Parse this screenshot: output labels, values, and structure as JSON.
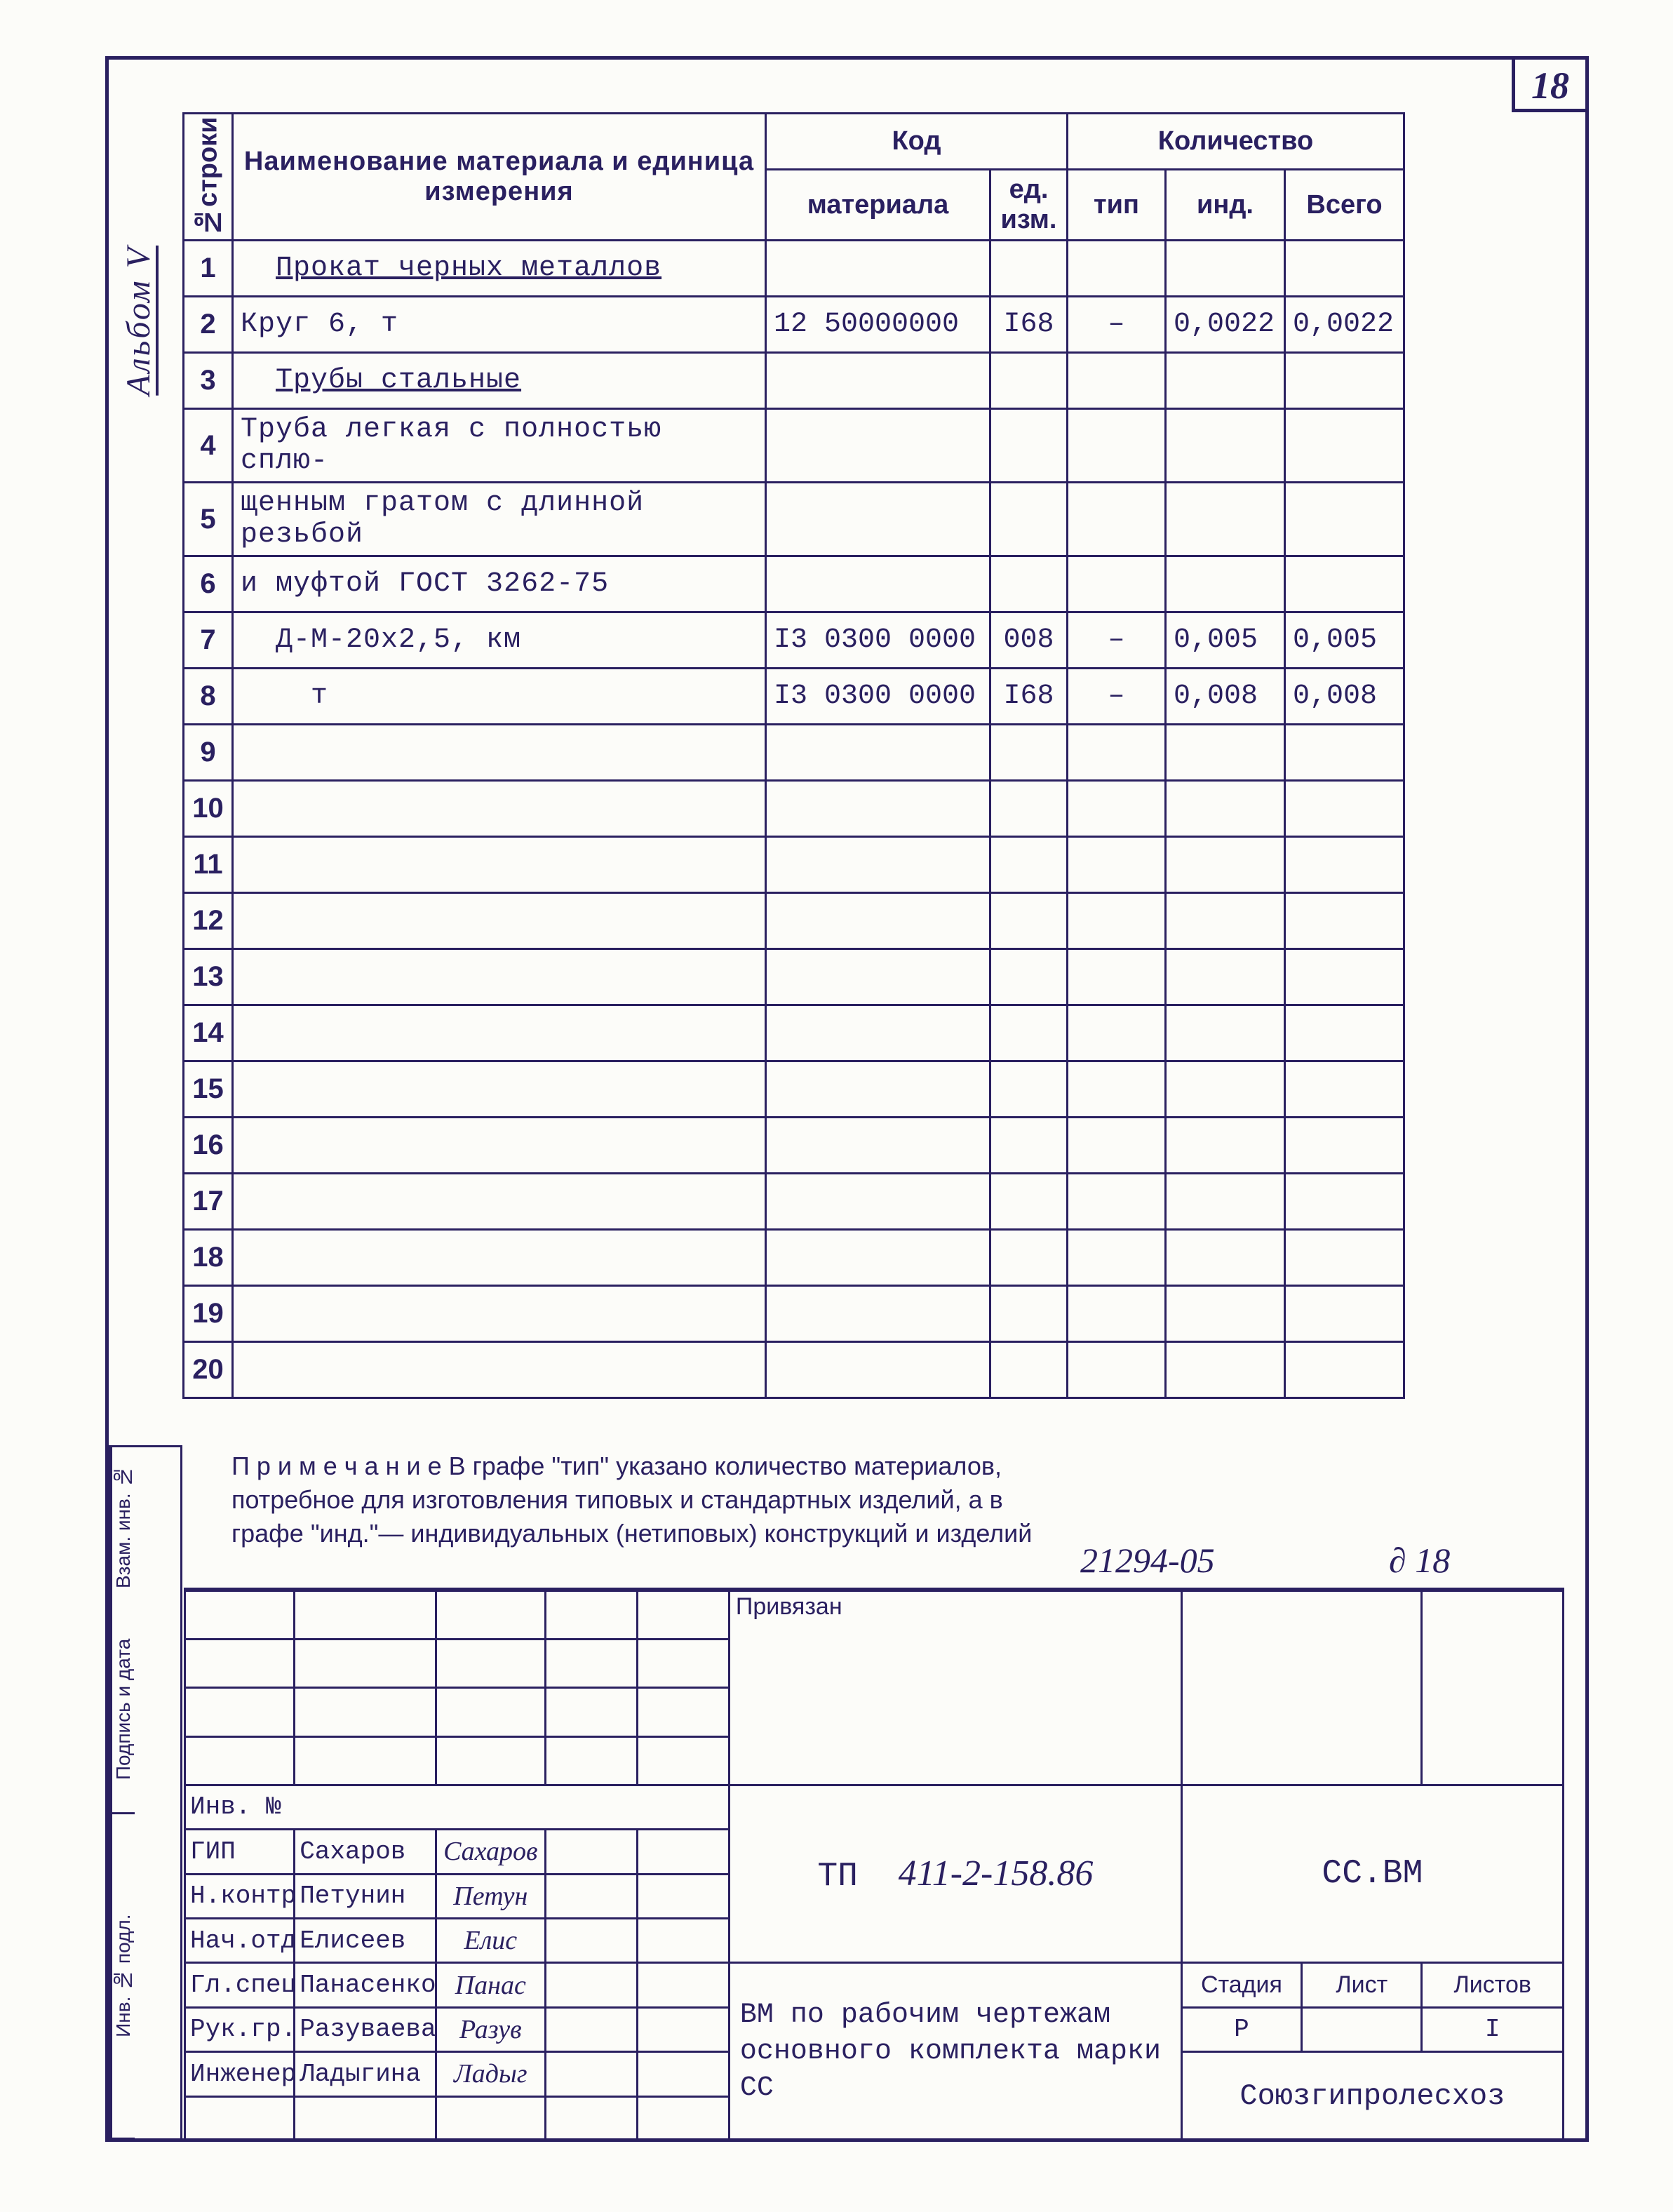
{
  "page_number": "18",
  "album_label": "Альбом V",
  "header": {
    "row_no": "№строки",
    "name": "Наименование материала и единица измерения",
    "code": "Код",
    "code_mat": "материала",
    "code_ed": "ед. изм.",
    "qty": "Количество",
    "tip": "тип",
    "ind": "инд.",
    "vsego": "Всего"
  },
  "rows": [
    {
      "n": "1",
      "name": "Прокат черных металлов",
      "name_cls": "underline indent",
      "mat": "",
      "ed": "",
      "tip": "",
      "ind": "",
      "vse": ""
    },
    {
      "n": "2",
      "name": "Круг 6, т",
      "mat": "12  50000000",
      "ed": "I68",
      "tip": "–",
      "ind": "0,0022",
      "vse": "0,0022"
    },
    {
      "n": "3",
      "name": "Трубы стальные",
      "name_cls": "underline indent",
      "mat": "",
      "ed": "",
      "tip": "",
      "ind": "",
      "vse": ""
    },
    {
      "n": "4",
      "name": "Труба легкая с полностью сплю-",
      "mat": "",
      "ed": "",
      "tip": "",
      "ind": "",
      "vse": ""
    },
    {
      "n": "5",
      "name": "щенным гратом с длинной резьбой",
      "mat": "",
      "ed": "",
      "tip": "",
      "ind": "",
      "vse": ""
    },
    {
      "n": "6",
      "name": "и муфтой ГОСТ 3262-75",
      "mat": "",
      "ed": "",
      "tip": "",
      "ind": "",
      "vse": ""
    },
    {
      "n": "7",
      "name": "Д-М-20х2,5, км",
      "name_cls": "indent",
      "mat": "I3 0300 0000",
      "ed": "008",
      "tip": "–",
      "ind": "0,005",
      "vse": "0,005"
    },
    {
      "n": "8",
      "name": "т",
      "name_cls": "indent2",
      "mat": "I3 0300 0000",
      "ed": "I68",
      "tip": "–",
      "ind": "0,008",
      "vse": "0,008"
    },
    {
      "n": "9",
      "name": "",
      "mat": "",
      "ed": "",
      "tip": "",
      "ind": "",
      "vse": ""
    },
    {
      "n": "10",
      "name": "",
      "mat": "",
      "ed": "",
      "tip": "",
      "ind": "",
      "vse": ""
    },
    {
      "n": "11",
      "name": "",
      "mat": "",
      "ed": "",
      "tip": "",
      "ind": "",
      "vse": ""
    },
    {
      "n": "12",
      "name": "",
      "mat": "",
      "ed": "",
      "tip": "",
      "ind": "",
      "vse": ""
    },
    {
      "n": "13",
      "name": "",
      "mat": "",
      "ed": "",
      "tip": "",
      "ind": "",
      "vse": ""
    },
    {
      "n": "14",
      "name": "",
      "mat": "",
      "ed": "",
      "tip": "",
      "ind": "",
      "vse": ""
    },
    {
      "n": "15",
      "name": "",
      "mat": "",
      "ed": "",
      "tip": "",
      "ind": "",
      "vse": ""
    },
    {
      "n": "16",
      "name": "",
      "mat": "",
      "ed": "",
      "tip": "",
      "ind": "",
      "vse": ""
    },
    {
      "n": "17",
      "name": "",
      "mat": "",
      "ed": "",
      "tip": "",
      "ind": "",
      "vse": ""
    },
    {
      "n": "18",
      "name": "",
      "mat": "",
      "ed": "",
      "tip": "",
      "ind": "",
      "vse": ""
    },
    {
      "n": "19",
      "name": "",
      "mat": "",
      "ed": "",
      "tip": "",
      "ind": "",
      "vse": ""
    },
    {
      "n": "20",
      "name": "",
      "mat": "",
      "ed": "",
      "tip": "",
      "ind": "",
      "vse": ""
    }
  ],
  "note": "П р и м е ч а н и е  В графе \"тип\" указано количество материалов, потребное для изготовления типовых и стандартных изделий, а в графе \"инд.\"— индивидуальных (нетиповых) конструкций и изделий",
  "note_ref": "21294-05",
  "note_dsheet": "∂ 18",
  "bind": {
    "b1": "Взам. инв. №",
    "b2": "Подпись и дата",
    "b3": "Инв. № подл."
  },
  "stamp": {
    "priv": "Привязан",
    "inv_label": "Инв. №",
    "roles": [
      "ГИП",
      "Н.контр.",
      "Нач.отд.",
      "Гл.спец.",
      "Рук.гр.",
      "Инженер"
    ],
    "names": [
      "Сахаров",
      "Петунин",
      "Елисеев",
      "Панасенков",
      "Разуваева",
      "Ладыгина"
    ],
    "sigs": [
      "Сахаров",
      "Петун",
      "Елис",
      "Панас",
      "Разув",
      "Ладыг"
    ],
    "tp_label": "ТП",
    "tp_num": "411-2-158.86",
    "doc_code": "СС.ВМ",
    "desc": "ВМ по рабочим чертежам основного комплекта марки СС",
    "stage_h": "Стадия",
    "sheet_h": "Лист",
    "sheets_h": "Листов",
    "stage": "Р",
    "sheet": "",
    "sheets": "I",
    "org": "Союзгипролесхоз"
  },
  "colors": {
    "ink": "#2a2060",
    "paper": "#fcfcf9"
  }
}
